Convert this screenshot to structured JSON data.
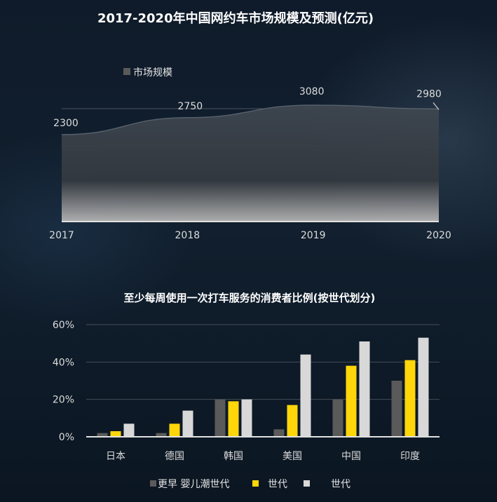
{
  "chart_data": [
    {
      "type": "area",
      "title": "2017-2020年中国网约车市场规模及预测(亿元)",
      "x": [
        "2017",
        "2018",
        "2019",
        "2020"
      ],
      "series": [
        {
          "name": "市场规模",
          "values": [
            2300,
            2750,
            3080,
            2980
          ],
          "labels": [
            "2300",
            "2750",
            "3080",
            "2980"
          ]
        }
      ],
      "legend": "top-left",
      "grid": true
    },
    {
      "type": "bar",
      "title": "至少每周使用一次打车服务的消费者比例(按世代划分)",
      "categories": [
        "日本",
        "德国",
        "韩国",
        "美国",
        "中国",
        "印度"
      ],
      "series": [
        {
          "name": "更早 婴儿潮世代",
          "values": [
            2,
            2,
            20,
            4,
            20,
            30
          ],
          "color": "#5a5a5a"
        },
        {
          "name": "世代",
          "values": [
            3,
            7,
            19,
            17,
            38,
            41
          ],
          "color": "#ffd60a"
        },
        {
          "name": "世代",
          "values": [
            7,
            14,
            20,
            44,
            51,
            53
          ],
          "color": "#d8d8d8"
        }
      ],
      "yticks": [
        "0%",
        "20%",
        "40%",
        "60%"
      ],
      "ylim": [
        0,
        60
      ],
      "legend": "bottom-center",
      "grid": true
    }
  ]
}
